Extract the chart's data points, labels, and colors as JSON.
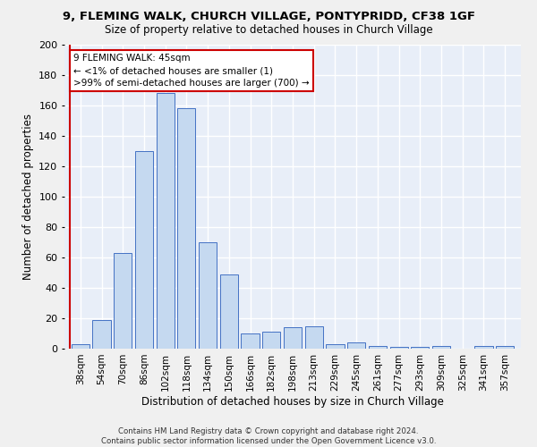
{
  "title1": "9, FLEMING WALK, CHURCH VILLAGE, PONTYPRIDD, CF38 1GF",
  "title2": "Size of property relative to detached houses in Church Village",
  "xlabel": "Distribution of detached houses by size in Church Village",
  "ylabel": "Number of detached properties",
  "categories": [
    "38sqm",
    "54sqm",
    "70sqm",
    "86sqm",
    "102sqm",
    "118sqm",
    "134sqm",
    "150sqm",
    "166sqm",
    "182sqm",
    "198sqm",
    "213sqm",
    "229sqm",
    "245sqm",
    "261sqm",
    "277sqm",
    "293sqm",
    "309sqm",
    "325sqm",
    "341sqm",
    "357sqm"
  ],
  "values": [
    3,
    19,
    63,
    130,
    168,
    158,
    70,
    49,
    10,
    11,
    14,
    15,
    3,
    4,
    2,
    1,
    1,
    2,
    0,
    2,
    2
  ],
  "bar_color": "#c5d9f0",
  "bar_edge_color": "#4472c4",
  "bar_alpha": 1.0,
  "vline_color": "#cc0000",
  "annotation_line1": "9 FLEMING WALK: 45sqm",
  "annotation_line2": "← <1% of detached houses are smaller (1)",
  "annotation_line3": ">99% of semi-detached houses are larger (700) →",
  "annotation_box_color": "#ffffff",
  "annotation_box_edgecolor": "#cc0000",
  "footer1": "Contains HM Land Registry data © Crown copyright and database right 2024.",
  "footer2": "Contains public sector information licensed under the Open Government Licence v3.0.",
  "bg_color": "#e8eef8",
  "fig_bg_color": "#f0f0f0",
  "grid_color": "#ffffff",
  "ylim": [
    0,
    200
  ],
  "yticks": [
    0,
    20,
    40,
    60,
    80,
    100,
    120,
    140,
    160,
    180,
    200
  ]
}
